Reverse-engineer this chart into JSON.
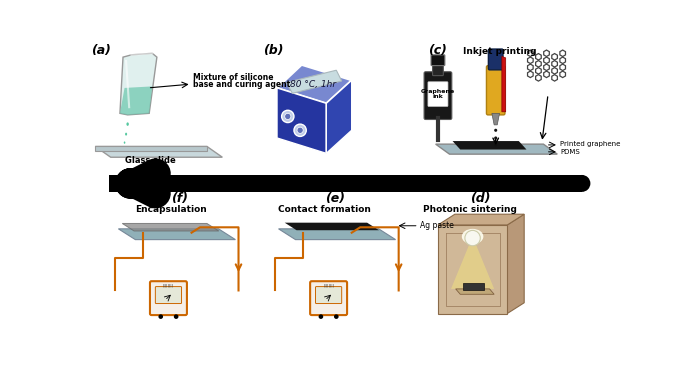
{
  "bg_color": "#ffffff",
  "orange_color": "#cc6600",
  "label_a": "(a)",
  "label_b": "(b)",
  "label_c": "(c)",
  "label_d": "(d)",
  "label_e": "(e)",
  "label_f": "(f)",
  "text_a1": "Mixture of silicone",
  "text_a2": "base and curing agent",
  "text_a3": "Glass slide",
  "text_b1": "80 °C, 1hr",
  "text_c1": "Inkjet printing",
  "text_c2": "Graphene\nink",
  "text_c3": "Printed graphene",
  "text_c4": "PDMS",
  "text_d": "Photonic sintering",
  "text_e": "Contact formation",
  "text_e2": "Ag paste",
  "text_f": "Encapsulation",
  "drop_color": "#55c8a0",
  "hotplate_top": "#6878c8",
  "hotplate_body": "#3040a8",
  "hotplate_face": "#2535a0",
  "pdms_color": "#a8bec4",
  "box_wall": "#c8aa88",
  "box_side": "#b89878",
  "box_floor": "#a88858",
  "flame_color": "#f0e090"
}
